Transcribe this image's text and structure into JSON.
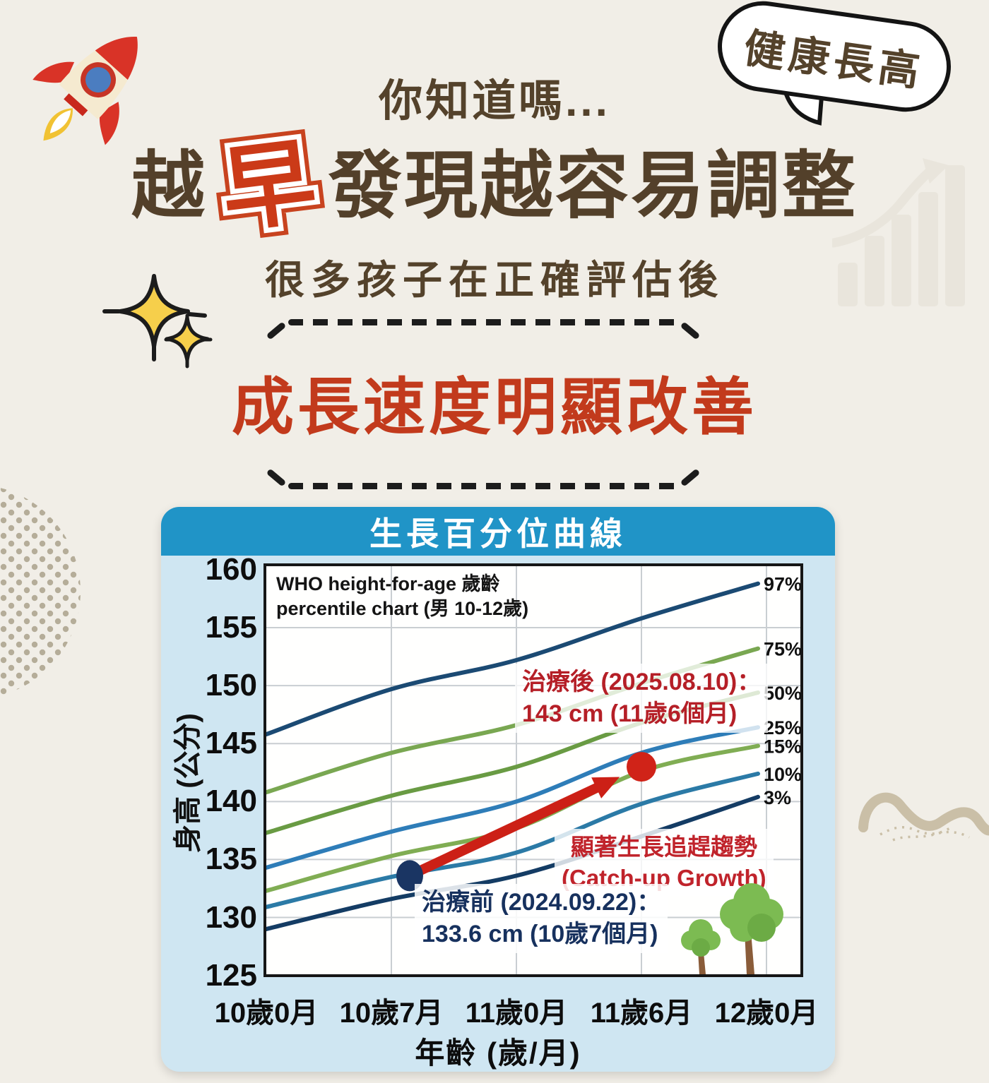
{
  "colors": {
    "page_bg": "#f1eee7",
    "brown_text": "#54422b",
    "red_accent": "#c23a1c",
    "highlight_char_red": "#cb3a18",
    "panel_bg": "#cfe6f2",
    "panel_header_blue": "#2094c7",
    "pre_point_navy": "#1a3563",
    "post_point_red": "#d02318",
    "arrow_red": "#cc2016"
  },
  "icons": {
    "rocket": "rocket-icon",
    "speech_bubble": "speech-bubble-icon",
    "sparkles": "sparkles-icon",
    "growth_bars": "growth-bars-decor-icon",
    "squiggle": "squiggle-decor-icon",
    "halftone": "halftone-dots-decor-icon",
    "trees": "trees-icon"
  },
  "header": {
    "kicker": "你知道嗎...",
    "bubble_label": "健康長高",
    "title_pre": "越",
    "title_highlight": "早",
    "title_post": "發現越容易調整",
    "subtitle": "很多孩子在正確評估後",
    "headline": "成長速度明顯改善"
  },
  "chart": {
    "panel_title": "生長百分位曲線",
    "who_label_line1": "WHO height-for-age 歲齡",
    "who_label_line2": "percentile chart (男 10-12歲)"
  },
  "chart_data": {
    "type": "line",
    "title": "生長百分位曲線",
    "xlabel": "年齡 (歲/月)",
    "ylabel": "身高 (公分)",
    "x_ticks": [
      "10歲0月",
      "10歲7月",
      "11歲0月",
      "11歲6月",
      "12歲0月"
    ],
    "y_ticks": [
      160,
      155,
      150,
      145,
      140,
      135,
      130,
      125
    ],
    "ylim": [
      125,
      160
    ],
    "grid": true,
    "legend_position": "right-inline",
    "series": [
      {
        "name": "97%",
        "color": "#1b4a73",
        "values": [
          145.8,
          149.7,
          152.2,
          155.8,
          158.8
        ]
      },
      {
        "name": "75%",
        "color": "#79a751",
        "values": [
          140.8,
          144.2,
          146.6,
          150.2,
          153.2
        ]
      },
      {
        "name": "50%",
        "color": "#699b43",
        "values": [
          137.3,
          140.5,
          143.0,
          146.8,
          149.4
        ]
      },
      {
        "name": "25%",
        "color": "#2e7db8",
        "values": [
          134.3,
          137.4,
          140.0,
          144.2,
          146.4
        ]
      },
      {
        "name": "15%",
        "color": "#80ad53",
        "values": [
          132.3,
          135.3,
          137.7,
          142.6,
          144.8
        ]
      },
      {
        "name": "10%",
        "color": "#2b7aa6",
        "values": [
          130.9,
          133.5,
          135.6,
          139.8,
          142.4
        ]
      },
      {
        "name": "3%",
        "color": "#143c64",
        "values": [
          129.0,
          131.6,
          133.6,
          137.0,
          140.4
        ]
      }
    ],
    "points": [
      {
        "id": "pre",
        "label_line1": "治療前 (2024.09.22)：",
        "label_line2": "133.6 cm (10歲7個月)",
        "x_tick": "10歲7月",
        "height_cm": 133.6,
        "dot_color": "#1a3563",
        "text_color": "#17315e"
      },
      {
        "id": "post",
        "label_line1": "治療後 (2025.08.10)：",
        "label_line2": "143 cm (11歲6個月)",
        "x_tick": "11歲6月",
        "height_cm": 143,
        "dot_color": "#d02318",
        "text_color": "#b51f27"
      }
    ],
    "annotation": {
      "line1": "顯著生長追趕趨勢",
      "line2": "(Catch-up Growth)",
      "color": "#c0232b"
    }
  }
}
